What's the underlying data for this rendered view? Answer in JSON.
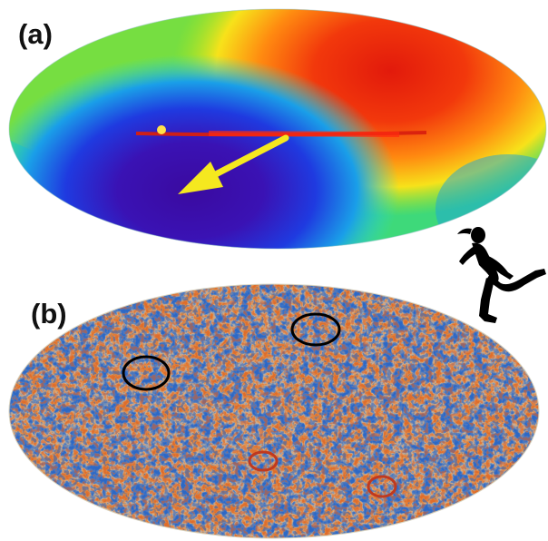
{
  "panels": [
    {
      "label": "(a)"
    },
    {
      "label": "(b)"
    }
  ],
  "icons": {
    "arrow": "dipole-arrow",
    "runner": "runner-silhouette-icon",
    "circles": [
      "black-circle-icon",
      "black-circle-icon",
      "red-circle-icon",
      "red-circle-icon"
    ]
  },
  "colors": {
    "arrow": "#f5e81f",
    "black_circle": "#000000",
    "red_circle": "#c0391e"
  }
}
